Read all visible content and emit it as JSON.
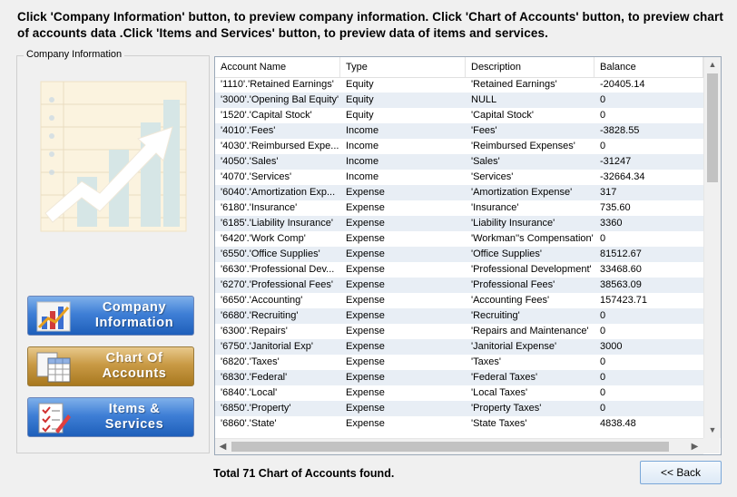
{
  "instruction": "Click 'Company Information' button, to preview company information. Click 'Chart of Accounts' button, to preview chart of accounts data .Click 'Items and Services' button, to preview data of items and services.",
  "group_label": "Company Information",
  "buttons": {
    "company_info": "Company Information",
    "chart_of_accounts": "Chart Of Accounts",
    "items_services": "Items & Services",
    "back": "<<  Back"
  },
  "grid": {
    "columns": [
      "Account Name",
      "Type",
      "Description",
      "Balance"
    ],
    "rows": [
      [
        "'1110'.'Retained Earnings'",
        "Equity",
        "'Retained Earnings'",
        "-20405.14"
      ],
      [
        "'3000'.'Opening Bal Equity'",
        "Equity",
        "NULL",
        "0"
      ],
      [
        "'1520'.'Capital Stock'",
        "Equity",
        "'Capital Stock'",
        "0"
      ],
      [
        "'4010'.'Fees'",
        "Income",
        "'Fees'",
        "-3828.55"
      ],
      [
        "'4030'.'Reimbursed Expe...",
        "Income",
        "'Reimbursed Expenses'",
        "0"
      ],
      [
        "'4050'.'Sales'",
        "Income",
        "'Sales'",
        "-31247"
      ],
      [
        "'4070'.'Services'",
        "Income",
        "'Services'",
        "-32664.34"
      ],
      [
        "'6040'.'Amortization Exp...",
        "Expense",
        "'Amortization Expense'",
        "317"
      ],
      [
        "'6180'.'Insurance'",
        "Expense",
        "'Insurance'",
        "735.60"
      ],
      [
        "'6185'.'Liability Insurance'",
        "Expense",
        "'Liability Insurance'",
        "3360"
      ],
      [
        "'6420'.'Work Comp'",
        "Expense",
        "'Workman''s Compensation'",
        "0"
      ],
      [
        "'6550'.'Office Supplies'",
        "Expense",
        "'Office Supplies'",
        "81512.67"
      ],
      [
        "'6630'.'Professional Dev...",
        "Expense",
        "'Professional Development'",
        "33468.60"
      ],
      [
        "'6270'.'Professional Fees'",
        "Expense",
        "'Professional Fees'",
        "38563.09"
      ],
      [
        "'6650'.'Accounting'",
        "Expense",
        "'Accounting Fees'",
        "157423.71"
      ],
      [
        "'6680'.'Recruiting'",
        "Expense",
        "'Recruiting'",
        "0"
      ],
      [
        "'6300'.'Repairs'",
        "Expense",
        "'Repairs and Maintenance'",
        "0"
      ],
      [
        "'6750'.'Janitorial Exp'",
        "Expense",
        "'Janitorial Expense'",
        "3000"
      ],
      [
        "'6820'.'Taxes'",
        "Expense",
        "'Taxes'",
        "0"
      ],
      [
        "'6830'.'Federal'",
        "Expense",
        "'Federal Taxes'",
        "0"
      ],
      [
        "'6840'.'Local'",
        "Expense",
        "'Local Taxes'",
        "0"
      ],
      [
        "'6850'.'Property'",
        "Expense",
        "'Property Taxes'",
        "0"
      ],
      [
        "'6860'.'State'",
        "Expense",
        "'State Taxes'",
        "4838.48"
      ]
    ]
  },
  "total_text": "Total 71 Chart of Accounts found.",
  "icons": [
    "chart-illustration-icon",
    "bar-chart-icon",
    "spreadsheet-icon",
    "checklist-icon"
  ],
  "colors": {
    "row_alt": "#e8eef5",
    "button_blue": "#3f7fd6",
    "button_gold": "#c99a45"
  }
}
